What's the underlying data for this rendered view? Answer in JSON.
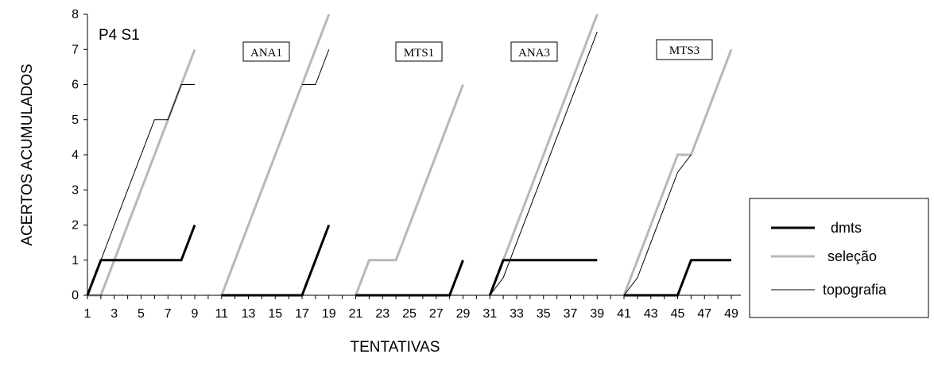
{
  "chart_data": {
    "type": "line",
    "title": "P4 S1",
    "xlabel": "TENTATIVAS",
    "ylabel": "ACERTOS ACUMULADOS",
    "xlim": [
      1,
      49
    ],
    "ylim": [
      0,
      8
    ],
    "x_ticks": [
      1,
      3,
      5,
      7,
      9,
      11,
      13,
      15,
      17,
      19,
      21,
      23,
      25,
      27,
      29,
      31,
      33,
      35,
      37,
      39,
      41,
      43,
      45,
      47,
      49
    ],
    "y_ticks": [
      0,
      1,
      2,
      3,
      4,
      5,
      6,
      7,
      8
    ],
    "grid": false,
    "legend_position": "right",
    "phase_labels": [
      "ANA1",
      "MTS1",
      "ANA3",
      "MTS3"
    ],
    "colors": {
      "dmts": "#000000",
      "selecao": "#b8b8b8",
      "topografia": "#000000"
    },
    "series": [
      {
        "name": "dmts",
        "segments": [
          {
            "x": [
              1,
              2,
              3,
              4,
              5,
              6,
              7,
              8,
              9
            ],
            "y": [
              0,
              1,
              1,
              1,
              1,
              1,
              1,
              1,
              2
            ]
          },
          {
            "x": [
              11,
              12,
              13,
              14,
              15,
              16,
              17,
              18,
              19
            ],
            "y": [
              0,
              0,
              0,
              0,
              0,
              0,
              0,
              1,
              2
            ]
          },
          {
            "x": [
              21,
              22,
              23,
              24,
              25,
              26,
              27,
              28,
              29
            ],
            "y": [
              0,
              0,
              0,
              0,
              0,
              0,
              0,
              0,
              1
            ]
          },
          {
            "x": [
              31,
              32,
              33,
              34,
              35,
              36,
              37,
              38,
              39
            ],
            "y": [
              0,
              1,
              1,
              1,
              1,
              1,
              1,
              1,
              1
            ]
          },
          {
            "x": [
              41,
              42,
              43,
              44,
              45,
              46,
              47,
              48,
              49
            ],
            "y": [
              0,
              0,
              0,
              0,
              0,
              1,
              1,
              1,
              1
            ]
          }
        ]
      },
      {
        "name": "seleção",
        "segments": [
          {
            "x": [
              1,
              2,
              3,
              4,
              5,
              6,
              7,
              8,
              9
            ],
            "y": [
              0,
              0,
              1,
              2,
              3,
              4,
              5,
              6,
              7
            ]
          },
          {
            "x": [
              11,
              12,
              13,
              14,
              15,
              16,
              17,
              18,
              19
            ],
            "y": [
              0,
              1,
              2,
              3,
              4,
              5,
              6,
              7,
              8
            ]
          },
          {
            "x": [
              21,
              22,
              23,
              24,
              25,
              26,
              27,
              28,
              29
            ],
            "y": [
              0,
              1,
              1,
              1,
              2,
              3,
              4,
              5,
              6
            ]
          },
          {
            "x": [
              31,
              32,
              33,
              34,
              35,
              36,
              37,
              38,
              39
            ],
            "y": [
              0,
              1,
              2,
              3,
              4,
              5,
              6,
              7,
              8
            ]
          },
          {
            "x": [
              41,
              42,
              43,
              44,
              45,
              46,
              47,
              48,
              49
            ],
            "y": [
              0,
              1,
              2,
              3,
              4,
              4,
              5,
              6,
              7
            ]
          }
        ]
      },
      {
        "name": "topografia",
        "segments": [
          {
            "x": [
              1,
              2,
              3,
              4,
              5,
              6,
              7,
              8,
              9
            ],
            "y": [
              0,
              1,
              2,
              3,
              4,
              5,
              5,
              6,
              6
            ]
          },
          {
            "x": [
              17,
              18,
              19
            ],
            "y": [
              6,
              6,
              7
            ]
          },
          {
            "x": [
              31,
              32,
              33,
              34,
              35,
              36,
              37,
              38,
              39
            ],
            "y": [
              0,
              0.5,
              1.5,
              2.5,
              3.5,
              4.5,
              5.5,
              6.5,
              7.5
            ]
          },
          {
            "x": [
              41,
              42,
              43,
              44,
              45,
              46
            ],
            "y": [
              0,
              0.5,
              1.5,
              2.5,
              3.5,
              4
            ]
          }
        ]
      }
    ]
  }
}
